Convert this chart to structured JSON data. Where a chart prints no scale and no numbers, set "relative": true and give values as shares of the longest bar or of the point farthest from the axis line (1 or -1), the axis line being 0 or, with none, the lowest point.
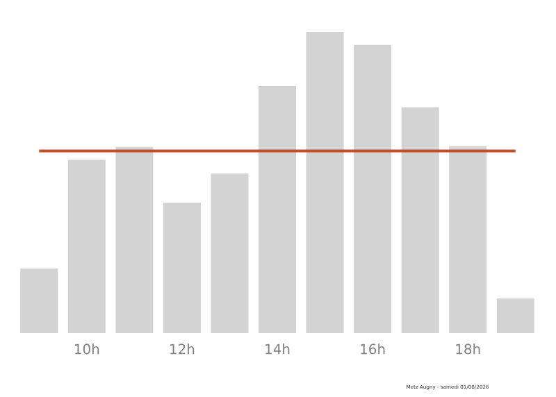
{
  "chart_data": {
    "type": "bar",
    "relative": true,
    "categories": [
      null,
      "10h",
      null,
      "12h",
      null,
      "14h",
      null,
      "16h",
      null,
      "18h",
      null
    ],
    "values": [
      0.215,
      0.576,
      0.618,
      0.433,
      0.53,
      0.82,
      1,
      0.957,
      0.75,
      0.621,
      0.115
    ],
    "color": "#d3d3d3",
    "ref_lines": [
      {
        "axis": "y",
        "value": 0.605,
        "color": "#c0502a"
      }
    ],
    "annotations": [
      "Metz Augny - samedi 01/08/2026"
    ]
  }
}
